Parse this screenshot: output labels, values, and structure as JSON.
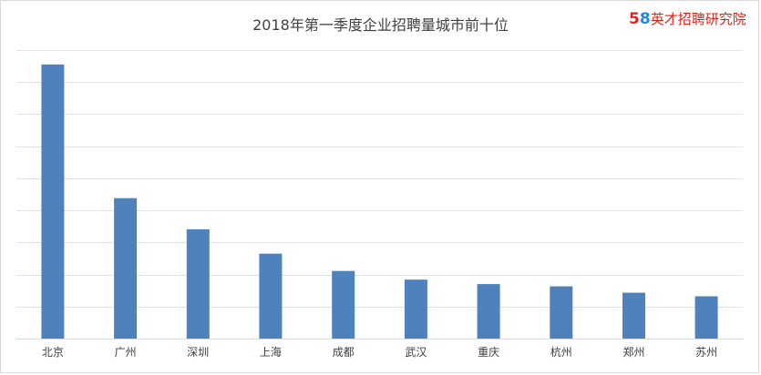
{
  "chart_data": {
    "type": "bar",
    "title": "2018年第一季度企业招聘量城市前十位",
    "categories": [
      "北京",
      "广州",
      "深圳",
      "上海",
      "成都",
      "武汉",
      "重庆",
      "杭州",
      "郑州",
      "苏州"
    ],
    "values": [
      8.55,
      4.38,
      3.41,
      2.65,
      2.11,
      1.84,
      1.7,
      1.63,
      1.43,
      1.32
    ],
    "ylim": [
      0,
      9
    ],
    "xlabel": "",
    "ylabel": "",
    "grid": true,
    "legend": "none",
    "bar_color": "#4f81bd"
  },
  "logo": {
    "num_5": "5",
    "num_8": "8",
    "text": "英才招聘研究院"
  }
}
